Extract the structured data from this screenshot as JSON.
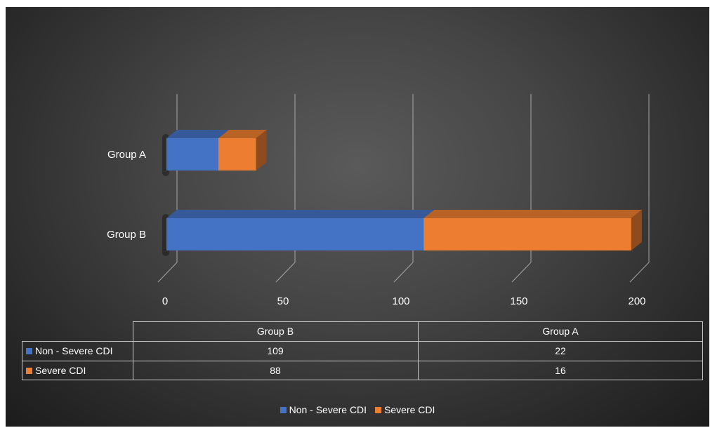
{
  "chart_data": {
    "type": "bar",
    "orientation": "horizontal",
    "stacked": true,
    "three_d": true,
    "categories": [
      "Group B",
      "Group A"
    ],
    "series": [
      {
        "name": "Non - Severe CDI",
        "values": [
          109,
          22
        ]
      },
      {
        "name": "Severe CDI",
        "values": [
          88,
          16
        ]
      }
    ],
    "xlim": [
      0,
      200
    ],
    "xticks": [
      "0",
      "50",
      "100",
      "150",
      "200"
    ],
    "title": "",
    "xlabel": "",
    "ylabel": "",
    "grid": "vertical",
    "legend": "bottom",
    "data_table": true,
    "colors": {
      "Non - Severe CDI": "#4472C4",
      "Severe CDI": "#ED7D31",
      "background": "#404040",
      "grid": "#bfbfbf"
    }
  }
}
